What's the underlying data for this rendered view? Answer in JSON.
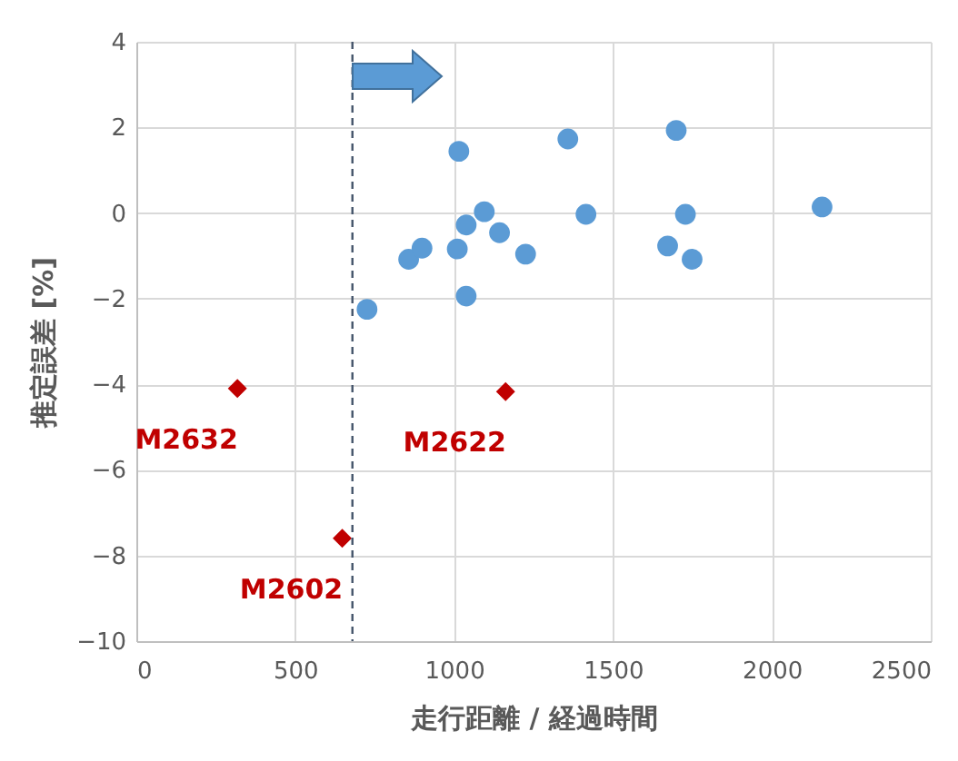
{
  "chart_data": {
    "type": "scatter",
    "xlabel": "走行距離 / 経過時間",
    "ylabel": "推定誤差 [%]",
    "xlim": [
      0,
      2500
    ],
    "xticks": [
      0,
      500,
      1000,
      1500,
      2000,
      2500
    ],
    "ylim": [
      -10,
      4
    ],
    "yticks": [
      -10,
      -8,
      -6,
      -4,
      -2,
      0,
      2,
      4
    ],
    "grid": true,
    "series": [
      {
        "color": "#5b9bd5",
        "marker": "circle",
        "x": [
          726,
          857,
          899,
          1015,
          1038,
          1010,
          1038,
          1095,
          1143,
          1225,
          1358,
          1415,
          1672,
          1699,
          1728,
          1749,
          2158
        ],
        "values": [
          -2.25,
          -1.08,
          -0.82,
          1.44,
          -0.28,
          -0.84,
          -1.94,
          0.03,
          -0.46,
          -0.96,
          1.73,
          -0.03,
          -0.77,
          1.93,
          -0.03,
          -1.08,
          0.14
        ]
      },
      {
        "color": "#c00000",
        "marker": "diamond",
        "x": [
          318,
          1162,
          648
        ],
        "values": [
          -4.1,
          -4.17,
          -7.6
        ]
      }
    ],
    "ref_lines": [
      {
        "axis": "x",
        "value": 680,
        "color": "#44546a",
        "line_style": "dashed"
      }
    ],
    "annotations": [
      {
        "text": "M2632",
        "x": 318,
        "y": -4.1
      },
      {
        "text": "M2622",
        "x": 1162,
        "y": -4.17
      },
      {
        "text": "M2602",
        "x": 648,
        "y": -7.6
      }
    ]
  }
}
